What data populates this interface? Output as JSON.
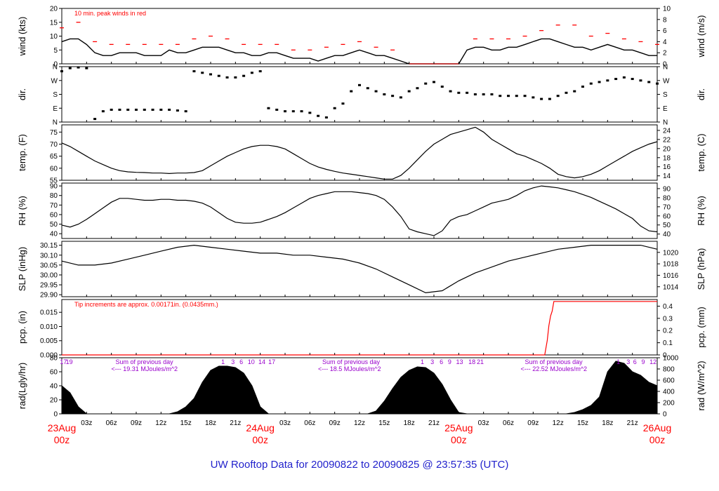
{
  "page_title": "UW Rooftop Data for 20090822  to  20090825 @ 23:57:35  (UTC)",
  "colors": {
    "data": "#000000",
    "peak": "#ff0000",
    "day_label": "#ff0000",
    "title": "#2222cc",
    "rad_note": "#9900cc",
    "axis": "#000000"
  },
  "time_axis": {
    "hours_span": 72,
    "hour_ticks": [
      "03z",
      "06z",
      "09z",
      "12z",
      "15z",
      "18z",
      "21z",
      "03z",
      "06z",
      "09z",
      "12z",
      "15z",
      "18z",
      "21z",
      "03z",
      "06z",
      "09z",
      "12z",
      "15z",
      "18z",
      "21z"
    ],
    "day_labels": [
      {
        "day": "23Aug",
        "hour": "00z"
      },
      {
        "day": "24Aug",
        "hour": "00z"
      },
      {
        "day": "25Aug",
        "hour": "00z"
      },
      {
        "day": "26Aug",
        "hour": "00z"
      }
    ]
  },
  "chart_data": [
    {
      "id": "wind",
      "type": "line",
      "ylabel_left": "wind (kts)",
      "ylabel_right": "wind (m/s)",
      "yticks_left": [
        "0",
        "5",
        "10",
        "15",
        "20"
      ],
      "yticks_right": [
        "0",
        "2",
        "4",
        "6",
        "8",
        "10"
      ],
      "ylim": [
        0,
        20
      ],
      "annotation": "10 min. peak winds in red",
      "series": [
        {
          "role": "mean",
          "x": [
            0,
            1,
            2,
            3,
            4,
            5,
            6,
            7,
            8,
            9,
            10,
            11,
            12,
            13,
            14,
            15,
            16,
            17,
            18,
            19,
            20,
            21,
            22,
            23,
            24,
            25,
            26,
            27,
            28,
            29,
            30,
            31,
            32,
            33,
            34,
            35,
            36,
            37,
            38,
            39,
            40,
            41,
            42,
            43,
            44,
            45,
            46,
            47,
            48,
            49,
            50,
            51,
            52,
            53,
            54,
            55,
            56,
            57,
            58,
            59,
            60,
            61,
            62,
            63,
            64,
            65,
            66,
            67,
            68,
            69,
            70,
            71,
            72
          ],
          "y": [
            8,
            9,
            9,
            7,
            4,
            3,
            3,
            4,
            4,
            4,
            3,
            3,
            3,
            5,
            4,
            4,
            5,
            6,
            6,
            6,
            5,
            4,
            4,
            3,
            3,
            4,
            4,
            3,
            2,
            2,
            2,
            1,
            2,
            3,
            3,
            4,
            5,
            4,
            3,
            3,
            2,
            1,
            0,
            0,
            0,
            0,
            0,
            0,
            0,
            5,
            6,
            6,
            5,
            5,
            6,
            6,
            7,
            8,
            9,
            9,
            8,
            7,
            6,
            6,
            5,
            6,
            7,
            6,
            5,
            5,
            4,
            3,
            3
          ]
        },
        {
          "role": "peak",
          "x": [
            0,
            2,
            4,
            6,
            8,
            10,
            12,
            14,
            16,
            18,
            20,
            22,
            24,
            26,
            28,
            30,
            32,
            34,
            36,
            38,
            40,
            42,
            48,
            50,
            52,
            54,
            56,
            58,
            60,
            62,
            64,
            66,
            68,
            70,
            72
          ],
          "y": [
            13,
            15,
            8,
            7,
            7,
            7,
            7,
            7,
            9,
            10,
            9,
            7,
            7,
            7,
            5,
            5,
            6,
            7,
            8,
            6,
            5,
            0,
            0,
            9,
            9,
            9,
            10,
            12,
            14,
            14,
            10,
            11,
            9,
            8,
            7
          ]
        }
      ]
    },
    {
      "id": "dir",
      "type": "scatter",
      "ylabel_left": "dir.",
      "ylabel_right": "dir.",
      "yticks_left": [
        "N",
        "E",
        "S",
        "W",
        "N"
      ],
      "yticks_right": [
        "N",
        "E",
        "S",
        "W",
        "N"
      ],
      "ylim": [
        0,
        360
      ],
      "x": [
        0,
        1,
        2,
        3,
        4,
        5,
        6,
        7,
        8,
        9,
        10,
        11,
        12,
        13,
        14,
        15,
        16,
        17,
        18,
        19,
        20,
        21,
        22,
        23,
        24,
        25,
        26,
        27,
        28,
        29,
        30,
        31,
        32,
        33,
        34,
        35,
        36,
        37,
        38,
        39,
        40,
        41,
        42,
        43,
        44,
        45,
        46,
        47,
        48,
        49,
        50,
        51,
        52,
        53,
        54,
        55,
        56,
        57,
        58,
        59,
        60,
        61,
        62,
        63,
        64,
        65,
        66,
        67,
        68,
        69,
        70,
        71,
        72
      ],
      "y": [
        330,
        350,
        355,
        350,
        20,
        70,
        80,
        80,
        80,
        80,
        80,
        80,
        80,
        80,
        75,
        70,
        330,
        320,
        310,
        300,
        290,
        290,
        300,
        320,
        330,
        90,
        80,
        70,
        70,
        70,
        60,
        40,
        30,
        90,
        120,
        200,
        240,
        220,
        200,
        180,
        170,
        160,
        200,
        220,
        250,
        260,
        230,
        200,
        190,
        190,
        180,
        180,
        180,
        170,
        170,
        170,
        170,
        160,
        150,
        150,
        170,
        190,
        200,
        230,
        250,
        260,
        270,
        280,
        290,
        280,
        270,
        260,
        250
      ]
    },
    {
      "id": "temp",
      "type": "line",
      "ylabel_left": "temp. (F)",
      "ylabel_right": "temp. (C)",
      "yticks_left": [
        "55",
        "60",
        "65",
        "70",
        "75"
      ],
      "yticks_right": [
        "14",
        "16",
        "18",
        "20",
        "22",
        "24"
      ],
      "ylim": [
        55,
        78
      ],
      "x": [
        0,
        1,
        2,
        3,
        4,
        5,
        6,
        7,
        8,
        9,
        10,
        11,
        12,
        13,
        14,
        15,
        16,
        17,
        18,
        19,
        20,
        21,
        22,
        23,
        24,
        25,
        26,
        27,
        28,
        29,
        30,
        31,
        32,
        33,
        34,
        35,
        36,
        37,
        38,
        39,
        40,
        41,
        42,
        43,
        44,
        45,
        46,
        47,
        48,
        49,
        50,
        51,
        52,
        53,
        54,
        55,
        56,
        57,
        58,
        59,
        60,
        61,
        62,
        63,
        64,
        65,
        66,
        67,
        68,
        69,
        70,
        71,
        72
      ],
      "y": [
        70.5,
        69,
        67,
        65,
        63,
        61.5,
        60,
        59,
        58.5,
        58.3,
        58.2,
        58,
        58,
        57.8,
        58,
        58,
        58.2,
        59,
        61,
        63,
        65,
        66.5,
        68,
        69,
        69.5,
        69.5,
        69,
        68,
        66,
        64,
        62,
        60.5,
        59.5,
        58.7,
        58,
        57.5,
        57,
        56.5,
        56,
        55.5,
        55.5,
        57,
        60,
        63.5,
        67,
        70,
        72,
        74,
        75,
        76,
        77,
        75,
        72,
        70,
        68,
        66,
        65,
        63.5,
        62,
        60,
        57.5,
        56.5,
        56,
        56.5,
        57.5,
        59,
        61,
        63,
        65,
        67,
        68.5,
        70,
        71
      ]
    },
    {
      "id": "rh",
      "type": "line",
      "ylabel_left": "RH (%)",
      "ylabel_right": "RH (%)",
      "yticks_left": [
        "40",
        "50",
        "60",
        "70",
        "80",
        "90"
      ],
      "yticks_right": [
        "40",
        "50",
        "60",
        "70",
        "80",
        "90"
      ],
      "ylim": [
        35,
        93
      ],
      "x": [
        0,
        1,
        2,
        3,
        4,
        5,
        6,
        7,
        8,
        9,
        10,
        11,
        12,
        13,
        14,
        15,
        16,
        17,
        18,
        19,
        20,
        21,
        22,
        23,
        24,
        25,
        26,
        27,
        28,
        29,
        30,
        31,
        32,
        33,
        34,
        35,
        36,
        37,
        38,
        39,
        40,
        41,
        42,
        43,
        44,
        45,
        46,
        47,
        48,
        49,
        50,
        51,
        52,
        53,
        54,
        55,
        56,
        57,
        58,
        59,
        60,
        61,
        62,
        63,
        64,
        65,
        66,
        67,
        68,
        69,
        70,
        71,
        72
      ],
      "y": [
        49,
        47,
        50,
        55,
        61,
        67,
        73,
        77,
        77,
        76,
        75,
        75,
        76,
        76,
        75,
        75,
        74,
        72,
        68,
        62,
        56,
        52,
        51,
        51,
        52,
        55,
        58,
        62,
        67,
        72,
        77,
        80,
        82,
        84,
        84,
        84,
        83,
        82,
        80,
        76,
        68,
        58,
        45,
        42,
        40,
        38,
        43,
        54,
        58,
        60,
        64,
        68,
        72,
        74,
        76,
        80,
        85,
        88,
        90,
        89,
        88,
        86,
        84,
        81,
        78,
        74,
        70,
        66,
        61,
        56,
        48,
        43,
        42
      ]
    },
    {
      "id": "slp",
      "type": "line",
      "ylabel_left": "SLP (inHg)",
      "ylabel_right": "SLP (hPa)",
      "yticks_left": [
        "29.90",
        "29.95",
        "30.00",
        "30.05",
        "30.10",
        "30.15"
      ],
      "yticks_right": [
        "1014",
        "1016",
        "1018",
        "1020"
      ],
      "ylim": [
        29.89,
        30.17
      ],
      "x": [
        0,
        2,
        4,
        6,
        8,
        10,
        12,
        14,
        16,
        18,
        20,
        22,
        24,
        26,
        28,
        30,
        32,
        34,
        36,
        38,
        40,
        42,
        44,
        46,
        48,
        50,
        52,
        54,
        56,
        58,
        60,
        62,
        64,
        66,
        68,
        70,
        72
      ],
      "y": [
        30.07,
        30.05,
        30.05,
        30.06,
        30.08,
        30.1,
        30.12,
        30.14,
        30.15,
        30.14,
        30.13,
        30.12,
        30.11,
        30.11,
        30.1,
        30.1,
        30.09,
        30.08,
        30.06,
        30.03,
        29.99,
        29.95,
        29.91,
        29.92,
        29.97,
        30.01,
        30.04,
        30.07,
        30.09,
        30.11,
        30.13,
        30.14,
        30.15,
        30.15,
        30.15,
        30.15,
        30.13
      ]
    },
    {
      "id": "pcp",
      "type": "line",
      "ylabel_left": "pcp. (in)",
      "ylabel_right": "pcp. (mm)",
      "yticks_left": [
        "0.000",
        "0.005",
        "0.010",
        "0.015"
      ],
      "yticks_right": [
        "0",
        "0.1",
        "0.2",
        "0.3",
        "0.4"
      ],
      "ylim": [
        0,
        0.0195
      ],
      "annotation": "Tip increments are approx. 0.00171in. (0.0435mm.)",
      "x": [
        0,
        58.4,
        58.7,
        58.9,
        59.1,
        59.3,
        59.5,
        72
      ],
      "y": [
        0,
        0,
        0.0051,
        0.0103,
        0.0137,
        0.0154,
        0.0188,
        0.0188
      ]
    },
    {
      "id": "rad",
      "type": "area",
      "ylabel_left": "rad(Lgly/hr)",
      "ylabel_right": "rad (W/m^2)",
      "yticks_left": [
        "0",
        "20",
        "40",
        "60",
        "80"
      ],
      "yticks_right": [
        "0",
        "200",
        "400",
        "600",
        "800",
        "1000"
      ],
      "ylim": [
        0,
        80
      ],
      "x": [
        0,
        1,
        2,
        3,
        4,
        5,
        6,
        7,
        8,
        9,
        10,
        11,
        12,
        13,
        14,
        15,
        16,
        17,
        18,
        19,
        20,
        21,
        22,
        23,
        24,
        25,
        26,
        27,
        28,
        29,
        30,
        31,
        32,
        33,
        34,
        35,
        36,
        37,
        38,
        39,
        40,
        41,
        42,
        43,
        44,
        45,
        46,
        47,
        48,
        49,
        50,
        51,
        52,
        53,
        54,
        55,
        56,
        57,
        58,
        59,
        60,
        61,
        62,
        63,
        64,
        65,
        66,
        67,
        68,
        69,
        70,
        71,
        72
      ],
      "y": [
        40,
        30,
        10,
        0,
        0,
        0,
        0,
        0,
        0,
        0,
        0,
        0,
        0,
        0,
        3,
        10,
        22,
        45,
        62,
        68,
        68,
        66,
        58,
        40,
        10,
        0,
        0,
        0,
        0,
        0,
        0,
        0,
        0,
        0,
        0,
        0,
        0,
        0,
        4,
        18,
        36,
        52,
        62,
        67,
        66,
        58,
        42,
        20,
        2,
        0,
        0,
        0,
        0,
        0,
        0,
        0,
        0,
        0,
        0,
        0,
        0,
        0,
        2,
        6,
        12,
        24,
        60,
        75,
        72,
        60,
        55,
        45,
        40
      ],
      "daily_notes": [
        {
          "label": "Sum of previous day",
          "value": "<--- 19.31 MJoules/m^2"
        },
        {
          "label": "Sum of previous day",
          "value": "<--- 18.5 MJoules/m^2"
        },
        {
          "label": "Sum of previous day",
          "value": "<--- 22.52 MJoules/m^2"
        }
      ],
      "hour_marks": [
        {
          "text": "17",
          "x": 0.2
        },
        {
          "text": "19",
          "x": 0.9
        },
        {
          "text": "1",
          "x": 19.5
        },
        {
          "text": "3",
          "x": 20.7
        },
        {
          "text": "6",
          "x": 21.7
        },
        {
          "text": "10",
          "x": 22.9
        },
        {
          "text": "14",
          "x": 24.2
        },
        {
          "text": "17",
          "x": 25.4
        },
        {
          "text": "1",
          "x": 43.6
        },
        {
          "text": "3",
          "x": 44.8
        },
        {
          "text": "6",
          "x": 45.9
        },
        {
          "text": "9",
          "x": 46.9
        },
        {
          "text": "13",
          "x": 48.1
        },
        {
          "text": "18",
          "x": 49.6
        },
        {
          "text": "21",
          "x": 50.6
        },
        {
          "text": "1",
          "x": 67.3
        },
        {
          "text": "3",
          "x": 68.5
        },
        {
          "text": "6",
          "x": 69.3
        },
        {
          "text": "9",
          "x": 70.3
        },
        {
          "text": "12",
          "x": 71.5
        }
      ]
    }
  ]
}
